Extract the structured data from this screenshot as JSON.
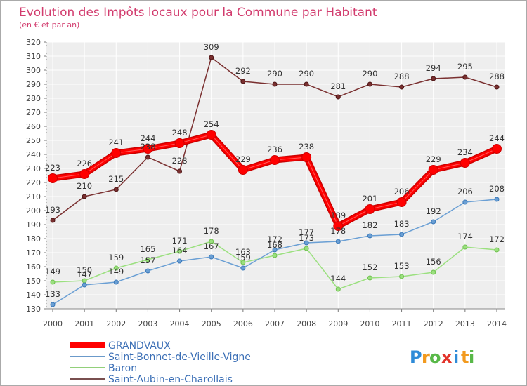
{
  "chart_data": {
    "type": "line",
    "title": "Evolution des Impôts locaux pour la Commune par Habitant",
    "subtitle": "(en € et par an)",
    "x": [
      "2000",
      "2001",
      "2002",
      "2003",
      "2004",
      "2005",
      "2006",
      "2007",
      "2008",
      "2009",
      "2010",
      "2011",
      "2012",
      "2013",
      "2014"
    ],
    "ylim": [
      130,
      320
    ],
    "y_ticks": [
      130,
      140,
      150,
      160,
      170,
      180,
      190,
      200,
      210,
      220,
      230,
      240,
      250,
      260,
      270,
      280,
      290,
      300,
      310,
      320
    ],
    "grid": true,
    "legend_position": "bottom-left",
    "series": [
      {
        "name": "GRANDVAUX",
        "color": "#ff0000",
        "dark": "#cc0000",
        "emphasis": true,
        "values": [
          223,
          226,
          241,
          244,
          248,
          254,
          229,
          236,
          238,
          189,
          201,
          206,
          229,
          234,
          244
        ]
      },
      {
        "name": "Saint-Bonnet-de-Vieille-Vigne",
        "color": "#6a9fd4",
        "dark": "#3a78b8",
        "values": [
          133,
          147,
          149,
          157,
          164,
          167,
          159,
          172,
          177,
          178,
          182,
          183,
          192,
          206,
          208
        ],
        "labels": [
          "133",
          "147",
          "149",
          "157",
          "164",
          "167",
          "159",
          "172",
          "177",
          "178",
          "182",
          "183",
          "192",
          "206",
          "208"
        ]
      },
      {
        "name": "Baron",
        "color": "#9be07f",
        "dark": "#6fc04f",
        "values": [
          149,
          150,
          159,
          165,
          171,
          178,
          163,
          168,
          173,
          144,
          152,
          153,
          156,
          174,
          172
        ],
        "labels": [
          "149",
          "150",
          "159",
          "165",
          "171",
          "178",
          "163",
          "168",
          "173",
          "144",
          "152",
          "153",
          "156",
          "174",
          "172"
        ]
      },
      {
        "name": "Saint-Aubin-en-Charollais",
        "color": "#7a3030",
        "dark": "#4d1515",
        "values": [
          193,
          210,
          215,
          238,
          228,
          309,
          292,
          290,
          290,
          281,
          290,
          288,
          294,
          295,
          288
        ]
      }
    ]
  },
  "brand": {
    "letters": [
      "P",
      "r",
      "o",
      "x",
      "i",
      "t",
      "i"
    ],
    "colors": [
      "#2e8bd8",
      "#f29a1f",
      "#58b848",
      "#e2332a",
      "#2e8bd8",
      "#f29a1f",
      "#58b848"
    ]
  }
}
